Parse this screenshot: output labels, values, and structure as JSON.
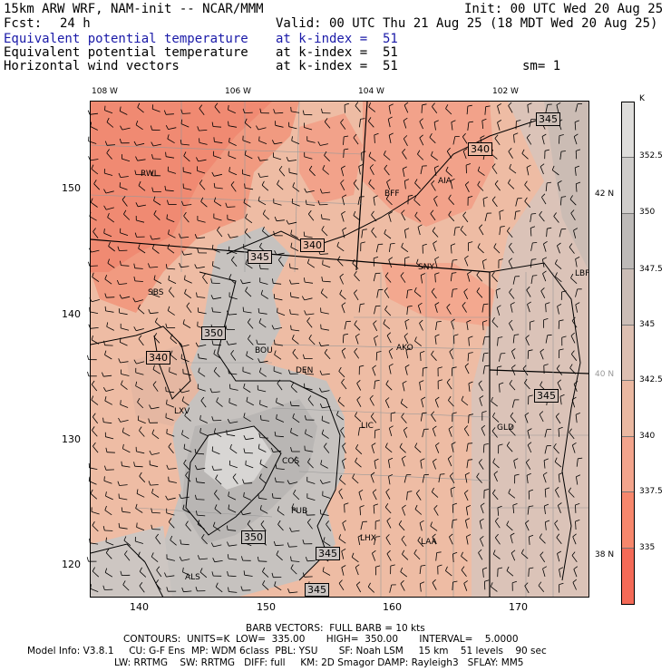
{
  "header": {
    "model_line": "15km ARW WRF, NAM-init -- NCAR/MMM",
    "init": "Init: 00 UTC Wed 20 Aug 25",
    "fcst_label": "Fcst:",
    "fcst_value": "24 h",
    "valid": "Valid: 00 UTC Thu 21 Aug 25 (18 MDT Wed 20 Aug 25)",
    "fields": [
      {
        "name": "Equivalent potential temperature",
        "level": "at k-index =  51"
      },
      {
        "name": "Equivalent potential temperature",
        "level": "at k-index =  51"
      },
      {
        "name": "Horizontal wind vectors",
        "level": "at k-index =  51"
      }
    ],
    "smoothing": "sm= 1"
  },
  "top_axis_labels": [
    "108 W",
    "106 W",
    "104 W",
    "102 W"
  ],
  "bottom_axis_labels": [
    "140",
    "150",
    "160",
    "170"
  ],
  "left_axis_labels": [
    "150",
    "140",
    "130",
    "120"
  ],
  "right_axis_labels": [
    "42 N",
    "40 N",
    "38 N"
  ],
  "stations": [
    "RWL",
    "BFF",
    "AIA",
    "SNY",
    "LBF",
    "SBS",
    "BOU",
    "DEN",
    "AKO",
    "LXV",
    "LIC",
    "GLD",
    "COS",
    "PUB",
    "LHX",
    "LAA",
    "ALS"
  ],
  "contour_labels": [
    "345",
    "340",
    "340",
    "345",
    "350",
    "340",
    "345",
    "350",
    "345",
    "345"
  ],
  "colorbar": {
    "unit": "K",
    "ticks": [
      "352.5",
      "350",
      "347.5",
      "345",
      "342.5",
      "340",
      "337.5",
      "335"
    ],
    "colors": [
      "#dedddb",
      "#cfcdcb",
      "#bdbab8",
      "#cbbdb6",
      "#ddbfb1",
      "#eab8a1",
      "#f3a48c",
      "#f7876c",
      "#f46a57"
    ]
  },
  "footer": {
    "barb": "BARB VECTORS:  FULL BARB = 10 kts",
    "contours": "CONTOURS:  UNITS=K  LOW=  335.00       HIGH=  350.00       INTERVAL=    5.0000",
    "model_info": "Model Info: V3.8.1     CU: G-F Ens  MP: WDM 6class  PBL: YSU       SF: Noah LSM     15 km    51 levels    90 sec",
    "physics": "LW: RRTMG    SW: RRTMG   DIFF: full     KM: 2D Smagor DAMP: Rayleigh3   SFLAY: MM5"
  }
}
